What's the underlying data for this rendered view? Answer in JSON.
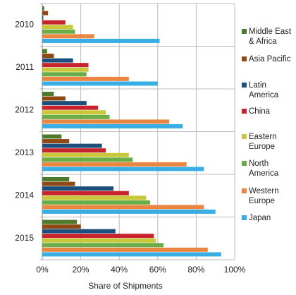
{
  "chart_data": {
    "type": "hbar",
    "x_label": "Share of Shipments",
    "categories": [
      "2010",
      "2011",
      "2012",
      "2013",
      "2014",
      "2015"
    ],
    "series": [
      {
        "name": "Middle East & Africa",
        "color": "#4e7a2e",
        "values": [
          1,
          2.5,
          6,
          10,
          14,
          18
        ]
      },
      {
        "name": "Asia Pacific",
        "color": "#8e4a12",
        "values": [
          3,
          6,
          12,
          14,
          17,
          20
        ]
      },
      {
        "name": "Latin America",
        "color": "#1c4f7c",
        "values": [
          0.5,
          16,
          23,
          31,
          37,
          38
        ]
      },
      {
        "name": "China",
        "color": "#c8232c",
        "values": [
          12,
          24,
          29,
          33,
          45,
          58
        ]
      },
      {
        "name": "Eastern Europe",
        "color": "#c9c83a",
        "values": [
          16,
          24,
          33,
          45,
          54,
          59
        ]
      },
      {
        "name": "North America",
        "color": "#6aac46",
        "values": [
          17,
          23,
          35,
          47,
          56,
          63
        ]
      },
      {
        "name": "Western Europe",
        "color": "#ea8642",
        "values": [
          27,
          45,
          66,
          75,
          84,
          86
        ]
      },
      {
        "name": "Japan",
        "color": "#38aee4",
        "values": [
          61,
          60,
          73,
          84,
          90,
          93
        ]
      }
    ],
    "xlim": [
      0,
      100
    ],
    "xticks": [
      {
        "value": 0,
        "label": "0%"
      },
      {
        "value": 20,
        "label": "20%"
      },
      {
        "value": 40,
        "label": "40%"
      },
      {
        "value": 60,
        "label": "60%"
      },
      {
        "value": 80,
        "label": "80%"
      },
      {
        "value": 100,
        "label": "100%"
      }
    ],
    "grid": true
  }
}
